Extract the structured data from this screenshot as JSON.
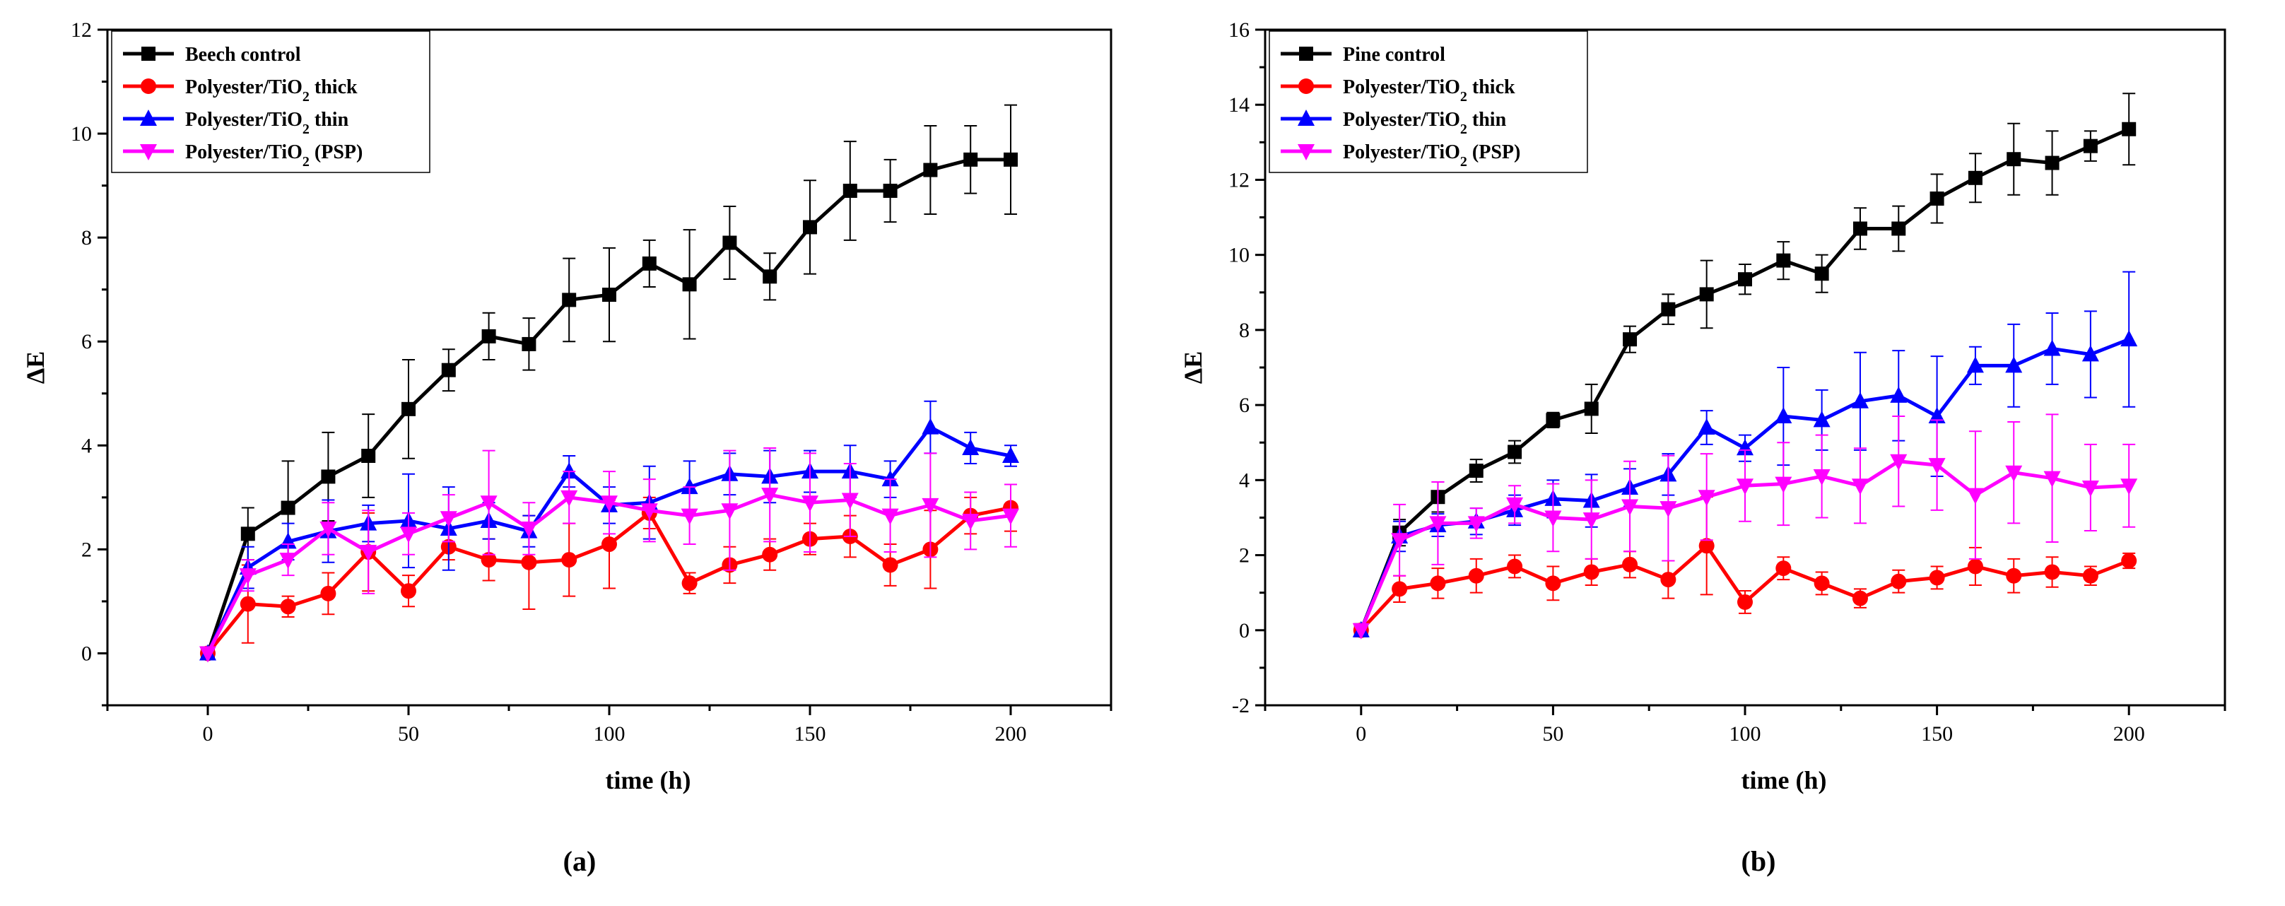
{
  "chart_data": [
    {
      "type": "line",
      "panel_label": "(a)",
      "xlabel": "time (h)",
      "ylabel": "ΔE",
      "xlim": [
        -25,
        225
      ],
      "ylim": [
        -1,
        12
      ],
      "xticks": [
        0,
        50,
        100,
        150,
        200
      ],
      "yticks": [
        0,
        2,
        4,
        6,
        8,
        10,
        12
      ],
      "legend_position": "top-left",
      "x": [
        0,
        10,
        20,
        30,
        40,
        50,
        60,
        70,
        80,
        90,
        100,
        110,
        120,
        130,
        140,
        150,
        160,
        170,
        180,
        190,
        200
      ],
      "series": [
        {
          "name": "Beech control",
          "color": "#000000",
          "marker": "square",
          "values": [
            0,
            2.3,
            2.8,
            3.4,
            3.8,
            4.7,
            5.45,
            6.1,
            5.95,
            6.8,
            6.9,
            7.5,
            7.1,
            7.9,
            7.25,
            8.2,
            8.9,
            8.9,
            9.3,
            9.5,
            9.5
          ],
          "errors": [
            0,
            0.5,
            0.9,
            0.85,
            0.8,
            0.95,
            0.4,
            0.45,
            0.5,
            0.8,
            0.9,
            0.45,
            1.05,
            0.7,
            0.45,
            0.9,
            0.95,
            0.6,
            0.85,
            0.65,
            1.05
          ]
        },
        {
          "name": "Polyester/TiO2 thick",
          "color": "#ff0000",
          "marker": "circle",
          "values": [
            0,
            0.95,
            0.9,
            1.15,
            1.95,
            1.2,
            2.05,
            1.8,
            1.75,
            1.8,
            2.1,
            2.7,
            1.35,
            1.7,
            1.9,
            2.2,
            2.25,
            1.7,
            2.0,
            2.65,
            2.8
          ],
          "errors": [
            0,
            0.75,
            0.2,
            0.4,
            0.75,
            0.3,
            0.25,
            0.4,
            0.9,
            0.7,
            0.85,
            0.3,
            0.2,
            0.35,
            0.3,
            0.3,
            0.4,
            0.4,
            0.75,
            0.35,
            0.45
          ]
        },
        {
          "name": "Polyester/TiO2 thin",
          "color": "#0000ff",
          "marker": "triangle-up",
          "values": [
            0,
            1.65,
            2.15,
            2.35,
            2.5,
            2.55,
            2.4,
            2.55,
            2.35,
            3.5,
            2.85,
            2.9,
            3.2,
            3.45,
            3.4,
            3.5,
            3.5,
            3.35,
            4.35,
            3.95,
            3.8
          ],
          "errors": [
            0,
            0.4,
            0.35,
            0.6,
            0.35,
            0.9,
            0.8,
            0.35,
            0.3,
            0.3,
            0.35,
            0.7,
            0.5,
            0.4,
            0.5,
            0.4,
            0.5,
            0.35,
            0.5,
            0.3,
            0.2
          ]
        },
        {
          "name": "Polyester/TiO2 (PSP)",
          "color": "#ff00ff",
          "marker": "triangle-down",
          "values": [
            0,
            1.5,
            1.8,
            2.4,
            1.95,
            2.3,
            2.6,
            2.9,
            2.4,
            3.0,
            2.9,
            2.75,
            2.65,
            2.75,
            3.05,
            2.9,
            2.95,
            2.65,
            2.85,
            2.55,
            2.65
          ],
          "errors": [
            0,
            0.3,
            0.3,
            0.5,
            0.8,
            0.4,
            0.45,
            1.0,
            0.5,
            0.5,
            0.6,
            0.6,
            0.55,
            1.15,
            0.9,
            0.95,
            0.7,
            0.7,
            1.0,
            0.55,
            0.6
          ]
        }
      ]
    },
    {
      "type": "line",
      "panel_label": "(b)",
      "xlabel": "time (h)",
      "ylabel": "ΔE",
      "xlim": [
        -25,
        225
      ],
      "ylim": [
        -2,
        16
      ],
      "xticks": [
        0,
        50,
        100,
        150,
        200
      ],
      "yticks": [
        -2,
        0,
        2,
        4,
        6,
        8,
        10,
        12,
        14,
        16
      ],
      "legend_position": "top-left",
      "x": [
        0,
        10,
        20,
        30,
        40,
        50,
        60,
        70,
        80,
        90,
        100,
        110,
        120,
        130,
        140,
        150,
        160,
        170,
        180,
        190,
        200
      ],
      "series": [
        {
          "name": "Pine control",
          "color": "#000000",
          "marker": "square",
          "values": [
            0,
            2.6,
            3.55,
            4.25,
            4.75,
            5.6,
            5.9,
            7.75,
            8.55,
            8.95,
            9.35,
            9.85,
            9.5,
            10.7,
            10.7,
            11.5,
            12.05,
            12.55,
            12.45,
            12.9,
            13.35
          ],
          "errors": [
            0,
            0.35,
            0.4,
            0.3,
            0.3,
            0.2,
            0.65,
            0.35,
            0.4,
            0.9,
            0.4,
            0.5,
            0.5,
            0.55,
            0.6,
            0.65,
            0.65,
            0.95,
            0.85,
            0.4,
            0.95
          ]
        },
        {
          "name": "Polyester/TiO2 thick",
          "color": "#ff0000",
          "marker": "circle",
          "values": [
            0,
            1.1,
            1.25,
            1.45,
            1.7,
            1.25,
            1.55,
            1.75,
            1.35,
            2.25,
            0.75,
            1.65,
            1.25,
            0.85,
            1.3,
            1.4,
            1.7,
            1.45,
            1.55,
            1.45,
            1.85
          ],
          "errors": [
            0,
            0.35,
            0.4,
            0.45,
            0.3,
            0.45,
            0.35,
            0.35,
            0.5,
            1.3,
            0.3,
            0.3,
            0.3,
            0.25,
            0.3,
            0.3,
            0.5,
            0.45,
            0.4,
            0.25,
            0.2
          ]
        },
        {
          "name": "Polyester/TiO2 thin",
          "color": "#0000ff",
          "marker": "triangle-up",
          "values": [
            0,
            2.5,
            2.8,
            2.9,
            3.2,
            3.5,
            3.45,
            3.8,
            4.15,
            5.4,
            4.85,
            5.7,
            5.6,
            6.1,
            6.25,
            5.7,
            7.05,
            7.05,
            7.5,
            7.35,
            7.75
          ],
          "errors": [
            0,
            0.4,
            0.3,
            0.35,
            0.4,
            0.5,
            0.7,
            0.5,
            0.55,
            0.45,
            0.35,
            1.3,
            0.8,
            1.3,
            1.2,
            1.6,
            0.5,
            1.1,
            0.95,
            1.15,
            1.8
          ]
        },
        {
          "name": "Polyester/TiO2 (PSP)",
          "color": "#ff00ff",
          "marker": "triangle-down",
          "values": [
            0,
            2.4,
            2.85,
            2.85,
            3.35,
            3.0,
            2.95,
            3.3,
            3.25,
            3.55,
            3.85,
            3.9,
            4.1,
            3.85,
            4.5,
            4.4,
            3.6,
            4.2,
            4.05,
            3.8,
            3.85
          ],
          "errors": [
            0,
            0.95,
            1.1,
            0.4,
            0.5,
            0.9,
            1.05,
            1.2,
            1.4,
            1.15,
            0.95,
            1.1,
            1.1,
            1.0,
            1.2,
            1.2,
            1.7,
            1.35,
            1.7,
            1.15,
            1.1
          ]
        }
      ]
    }
  ]
}
